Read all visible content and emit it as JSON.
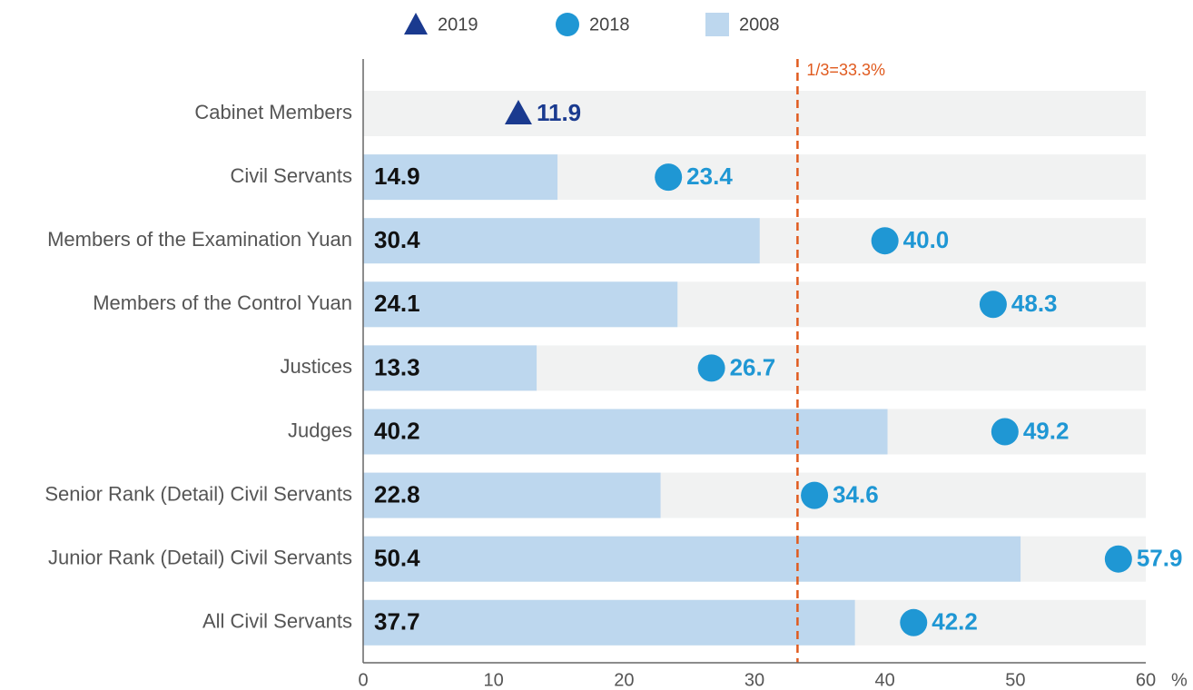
{
  "chart_data": {
    "type": "bar",
    "orientation": "horizontal",
    "categories": [
      "Cabinet Members",
      "Civil Servants",
      "Members of the Examination Yuan",
      "Members of the Control Yuan",
      "Justices",
      "Judges",
      "Senior Rank (Detail) Civil Servants",
      "Junior Rank (Detail) Civil Servants",
      "All Civil Servants"
    ],
    "series": [
      {
        "name": "2019",
        "marker": "triangle",
        "color": "#1a3a8f",
        "values": [
          11.9,
          null,
          null,
          null,
          null,
          null,
          null,
          null,
          null
        ],
        "value_labels": [
          "11.9",
          null,
          null,
          null,
          null,
          null,
          null,
          null,
          null
        ]
      },
      {
        "name": "2018",
        "marker": "circle",
        "color": "#1f97d4",
        "values": [
          null,
          23.4,
          40.0,
          48.3,
          26.7,
          49.2,
          34.6,
          57.9,
          42.2
        ],
        "value_labels": [
          null,
          "23.4",
          "40.0",
          "48.3",
          "26.7",
          "49.2",
          "34.6",
          "57.9",
          "42.2"
        ]
      },
      {
        "name": "2008",
        "marker": "bar",
        "color": "#bdd7ee",
        "values": [
          null,
          14.9,
          30.4,
          24.1,
          13.3,
          40.2,
          22.8,
          50.4,
          37.7
        ],
        "value_labels": [
          null,
          "14.9",
          "30.4",
          "24.1",
          "13.3",
          "40.2",
          "22.8",
          "50.4",
          "37.7"
        ]
      }
    ],
    "xlim": [
      0,
      60
    ],
    "xticks": [
      0,
      10,
      20,
      30,
      40,
      50,
      60
    ],
    "xlabel": "%",
    "reference_line": {
      "value": 33.3,
      "label": "1/3=33.3%",
      "color": "#e05a1e"
    },
    "legend": "top"
  }
}
